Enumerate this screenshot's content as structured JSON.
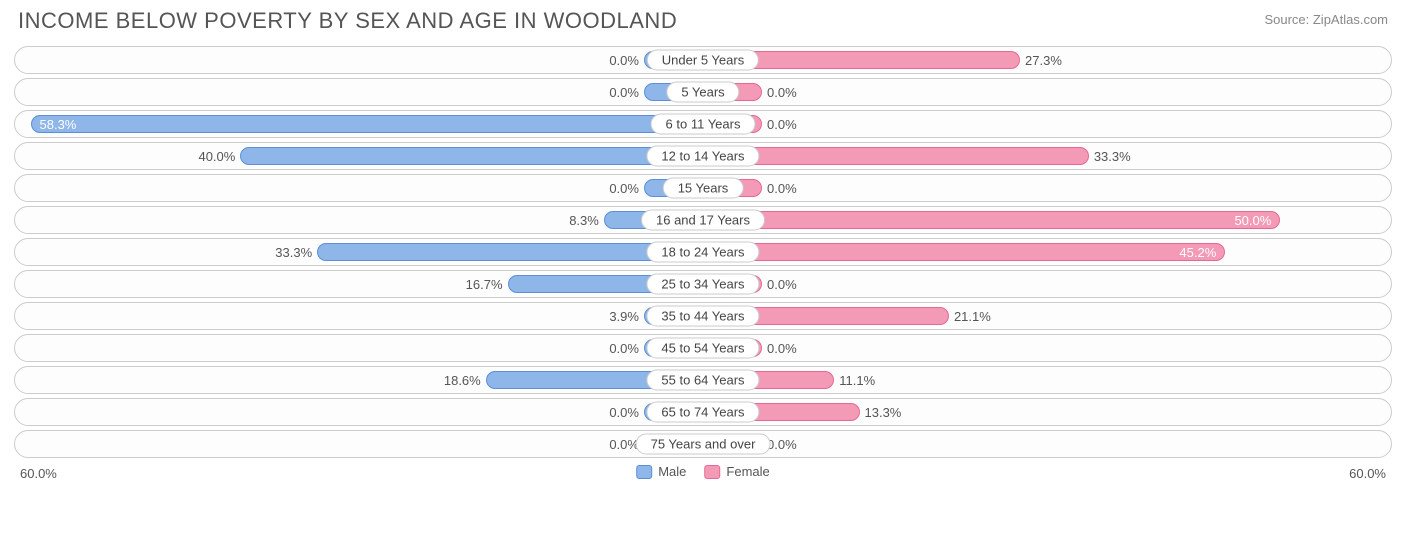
{
  "title": "INCOME BELOW POVERTY BY SEX AND AGE IN WOODLAND",
  "source": "Source: ZipAtlas.com",
  "axis_max": 60.0,
  "axis_label": "60.0%",
  "min_bar_pct": 8.0,
  "colors": {
    "male_fill": "#8fb6e8",
    "male_stroke": "#5a8fd6",
    "female_fill": "#f39ab6",
    "female_stroke": "#e46a93",
    "track_border": "#cccccc",
    "text": "#555555",
    "label_bg": "#ffffff"
  },
  "legend": {
    "male": "Male",
    "female": "Female"
  },
  "rows": [
    {
      "label": "Under 5 Years",
      "male": 0.0,
      "female": 27.3
    },
    {
      "label": "5 Years",
      "male": 0.0,
      "female": 0.0
    },
    {
      "label": "6 to 11 Years",
      "male": 58.3,
      "female": 0.0
    },
    {
      "label": "12 to 14 Years",
      "male": 40.0,
      "female": 33.3
    },
    {
      "label": "15 Years",
      "male": 0.0,
      "female": 0.0
    },
    {
      "label": "16 and 17 Years",
      "male": 8.3,
      "female": 50.0
    },
    {
      "label": "18 to 24 Years",
      "male": 33.3,
      "female": 45.2
    },
    {
      "label": "25 to 34 Years",
      "male": 16.7,
      "female": 0.0
    },
    {
      "label": "35 to 44 Years",
      "male": 3.9,
      "female": 21.1
    },
    {
      "label": "45 to 54 Years",
      "male": 0.0,
      "female": 0.0
    },
    {
      "label": "55 to 64 Years",
      "male": 18.6,
      "female": 11.1
    },
    {
      "label": "65 to 74 Years",
      "male": 0.0,
      "female": 13.3
    },
    {
      "label": "75 Years and over",
      "male": 0.0,
      "female": 0.0
    }
  ],
  "inside_threshold": 42.0
}
